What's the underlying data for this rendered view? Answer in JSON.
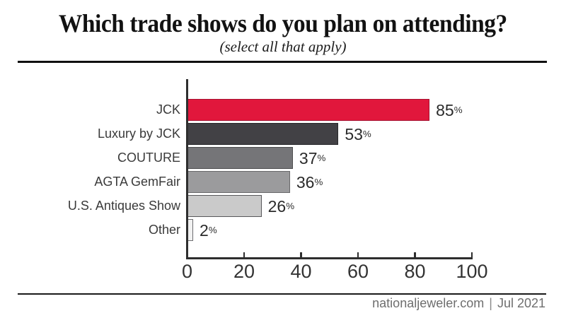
{
  "header": {
    "title": "Which trade shows do you plan on attending?",
    "subtitle": "(select all that apply)"
  },
  "chart_data": {
    "type": "bar",
    "orientation": "horizontal",
    "title": "Which trade shows do you plan on attending?",
    "subtitle": "(select all that apply)",
    "categories": [
      "JCK",
      "Luxury by JCK",
      "COUTURE",
      "AGTA GemFair",
      "U.S. Antiques Show",
      "Other"
    ],
    "values": [
      85,
      53,
      37,
      36,
      26,
      2
    ],
    "value_labels": [
      "85%",
      "53%",
      "37%",
      "36%",
      "26%",
      "2%"
    ],
    "bar_colors": [
      "#e1173c",
      "#424145",
      "#757578",
      "#9b9b9d",
      "#cacaca",
      "#f1f1f1"
    ],
    "bar_border_colors": [
      "#a61230",
      "#28282b",
      "#4d4d4f",
      "#68686a",
      "#57575a",
      "#6e6e71"
    ],
    "xlabel": "",
    "ylabel": "",
    "x_axis": {
      "range": [
        0,
        100
      ],
      "ticks": [
        0,
        20,
        40,
        60,
        80,
        100
      ]
    },
    "grid": false,
    "legend": false
  },
  "footer": {
    "source": "nationaljeweler.com",
    "separator": "|",
    "date": "Jul 2021"
  },
  "colors": {
    "accent_red": "#e1173c",
    "axis": "#2e2e2e",
    "label_text": "#3a3a3a",
    "value_text": "#2b2b2b",
    "footer_text": "#6e6e6e",
    "rule": "#101010"
  }
}
